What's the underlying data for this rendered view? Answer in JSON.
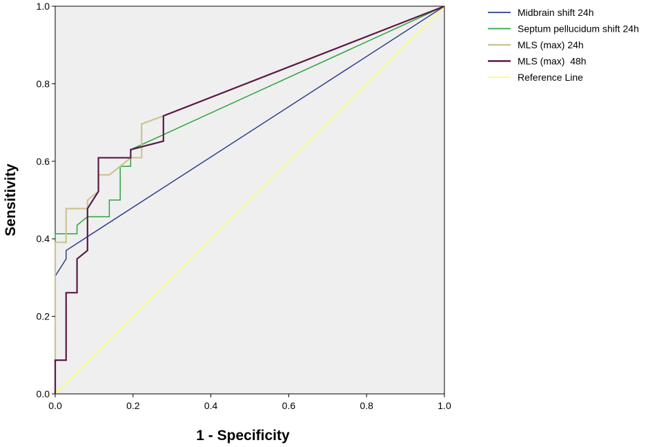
{
  "chart_data": {
    "type": "line",
    "xlabel": "1 - Specificity",
    "ylabel": "Sensitivity",
    "xlim": [
      0,
      1
    ],
    "ylim": [
      0,
      1
    ],
    "x_ticks": [
      "0.0",
      "0.2",
      "0.4",
      "0.6",
      "0.8",
      "1.0"
    ],
    "y_ticks": [
      "0.0",
      "0.2",
      "0.4",
      "0.6",
      "0.8",
      "1.0"
    ],
    "grid": false,
    "legend_position": "right",
    "plot_background": "#efefef",
    "series": [
      {
        "name": "Midbrain shift 24h",
        "color": "#2b3e8c",
        "x": [
          0,
          0,
          0.028,
          0.028,
          1
        ],
        "y": [
          0,
          0.304,
          0.348,
          0.37,
          1
        ]
      },
      {
        "name": "Septum pellucidum shift 24h",
        "color": "#2aa33a",
        "x": [
          0,
          0,
          0.056,
          0.056,
          0.083,
          0.139,
          0.139,
          0.167,
          0.167,
          0.194,
          0.194,
          1
        ],
        "y": [
          0,
          0.413,
          0.413,
          0.435,
          0.457,
          0.457,
          0.5,
          0.5,
          0.587,
          0.587,
          0.63,
          1
        ]
      },
      {
        "name": "MLS (max) 24h",
        "color": "#cbc494",
        "x": [
          0,
          0,
          0.028,
          0.028,
          0.083,
          0.083,
          0.111,
          0.111,
          0.139,
          0.167,
          0.194,
          0.222,
          0.222,
          0.278,
          0.278,
          1
        ],
        "y": [
          0,
          0.391,
          0.391,
          0.478,
          0.478,
          0.5,
          0.522,
          0.565,
          0.565,
          0.587,
          0.609,
          0.609,
          0.696,
          0.717,
          0.717,
          1
        ]
      },
      {
        "name": "MLS (max)  48h",
        "color": "#5a1848",
        "x": [
          0,
          0,
          0.028,
          0.028,
          0.056,
          0.056,
          0.083,
          0.083,
          0.111,
          0.111,
          0.194,
          0.194,
          0.278,
          0.278,
          1
        ],
        "y": [
          0,
          0.087,
          0.087,
          0.261,
          0.261,
          0.348,
          0.37,
          0.478,
          0.522,
          0.609,
          0.609,
          0.63,
          0.652,
          0.717,
          1
        ]
      },
      {
        "name": "Reference Line",
        "color": "#ffff66",
        "x": [
          0,
          1
        ],
        "y": [
          0,
          1
        ]
      }
    ]
  }
}
